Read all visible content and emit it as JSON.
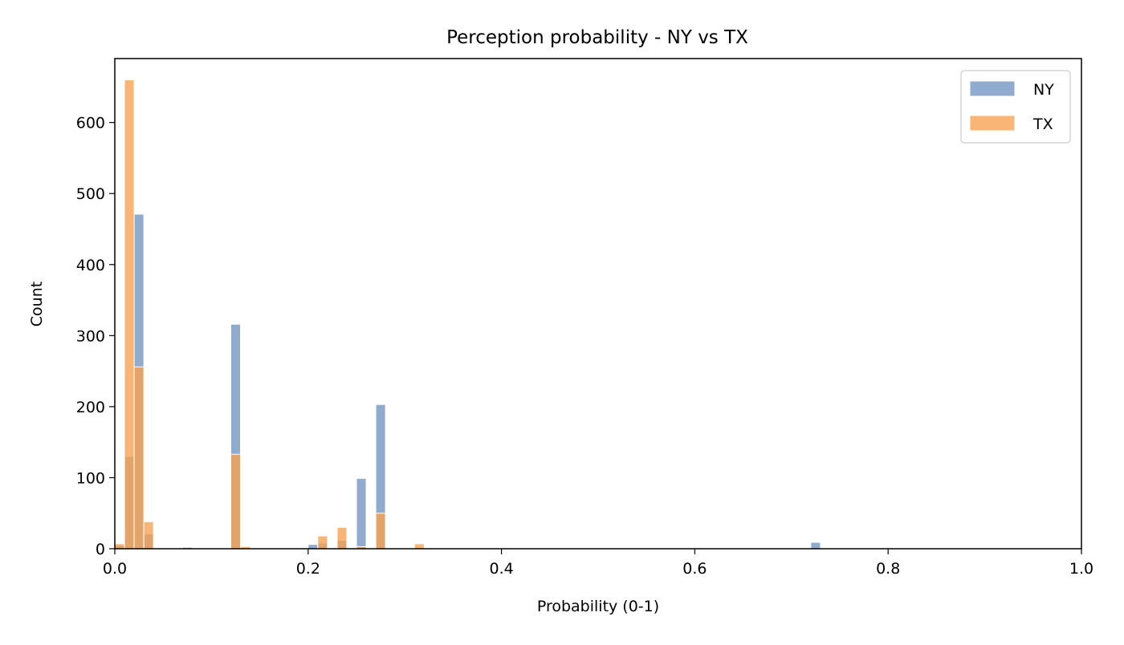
{
  "chart_data": {
    "type": "bar",
    "title": "Perception probability - NY vs TX",
    "xlabel": "Probability (0-1)",
    "ylabel": "Count",
    "xlim": [
      0.0,
      1.0
    ],
    "ylim": [
      0,
      690
    ],
    "xticks": [
      "0.0",
      "0.2",
      "0.4",
      "0.6",
      "0.8",
      "1.0"
    ],
    "xtick_values": [
      0.0,
      0.2,
      0.4,
      0.6,
      0.8,
      1.0
    ],
    "yticks": [
      "0",
      "100",
      "200",
      "300",
      "400",
      "500",
      "600"
    ],
    "ytick_values": [
      0,
      100,
      200,
      300,
      400,
      500,
      600
    ],
    "bin_width": 0.01,
    "grid": false,
    "legend": "top-right",
    "series": [
      {
        "name": "NY",
        "color": "#7396c1",
        "bin_starts": [
          0.0,
          0.01,
          0.02,
          0.03,
          0.07,
          0.12,
          0.2,
          0.21,
          0.23,
          0.25,
          0.27,
          0.72
        ],
        "values": [
          5,
          130,
          471,
          21,
          2,
          316,
          6,
          8,
          12,
          99,
          203,
          9
        ]
      },
      {
        "name": "TX",
        "color": "#f7a254",
        "bin_starts": [
          0.0,
          0.01,
          0.02,
          0.03,
          0.12,
          0.13,
          0.21,
          0.23,
          0.25,
          0.27,
          0.31
        ],
        "values": [
          7,
          660,
          256,
          38,
          133,
          3,
          18,
          30,
          3,
          50,
          7
        ]
      }
    ]
  }
}
